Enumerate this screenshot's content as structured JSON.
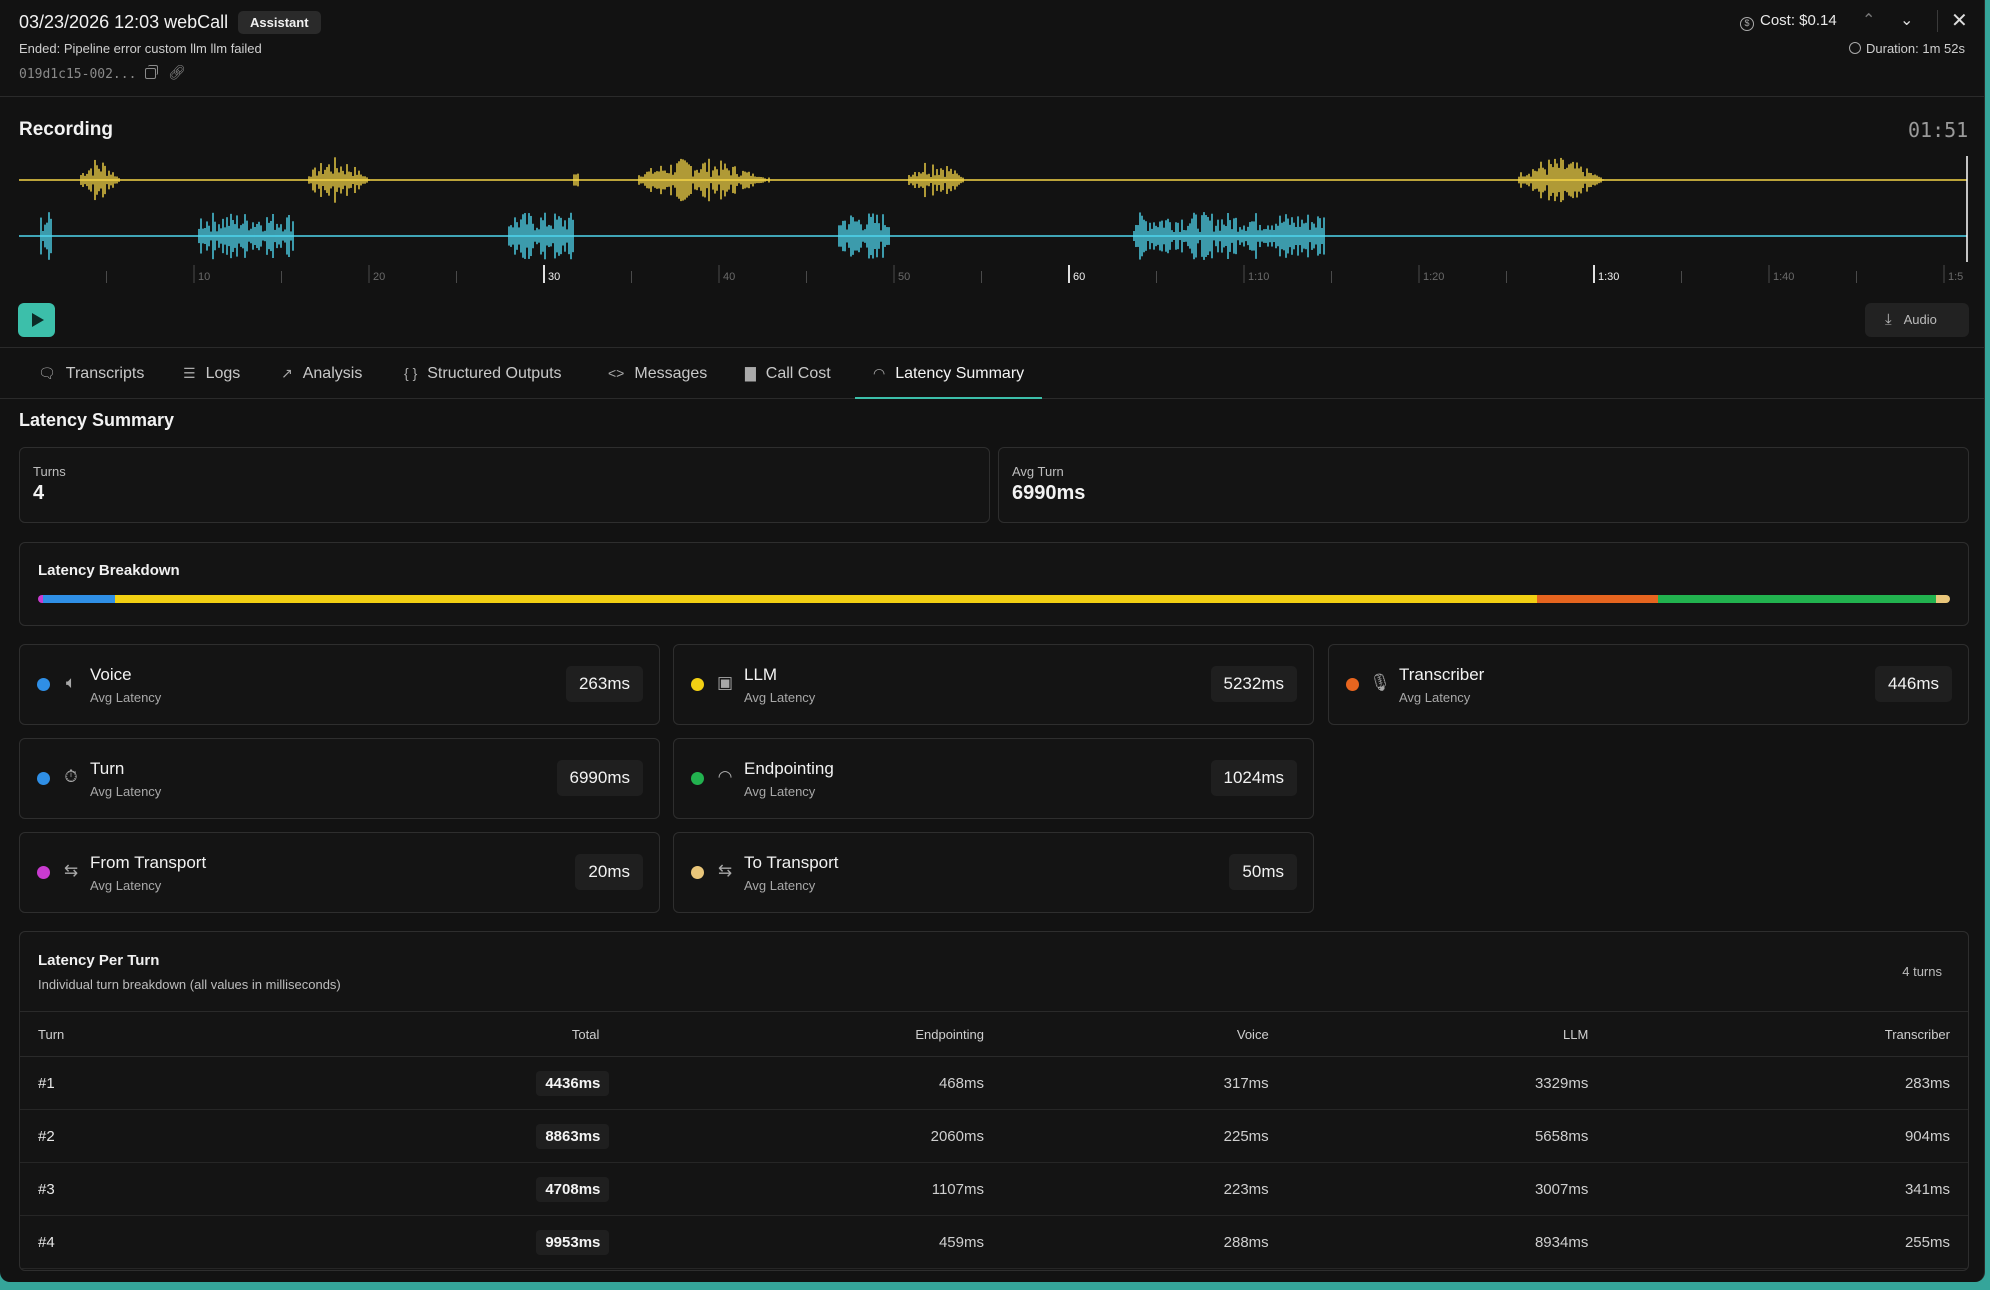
{
  "header": {
    "title": "03/23/2026 12:03 webCall",
    "badge": "Assistant",
    "ended": "Ended: Pipeline error custom llm llm failed",
    "call_id": "019d1c15-002...",
    "cost": "Cost: $0.14",
    "duration": "Duration: 1m 52s"
  },
  "recording": {
    "title": "Recording",
    "time": "01:51",
    "ticks": [
      "10",
      "20",
      "30",
      "40",
      "50",
      "60",
      "1:10",
      "1:20",
      "1:30",
      "1:40",
      "1:5"
    ],
    "audio_label": "Audio",
    "colors": {
      "assistant": "#f5d547",
      "user": "#4fd6ee"
    }
  },
  "tabs": [
    {
      "label": "Transcripts",
      "icon": "chat-icon"
    },
    {
      "label": "Logs",
      "icon": "list-icon"
    },
    {
      "label": "Analysis",
      "icon": "chart-line-icon"
    },
    {
      "label": "Structured Outputs",
      "icon": "braces-icon"
    },
    {
      "label": "Messages",
      "icon": "code-icon"
    },
    {
      "label": "Call Cost",
      "icon": "bar-chart-icon"
    },
    {
      "label": "Latency Summary",
      "icon": "gauge-icon",
      "active": true
    }
  ],
  "summary": {
    "title": "Latency Summary",
    "turns_label": "Turns",
    "turns_value": "4",
    "avg_turn_label": "Avg Turn",
    "avg_turn_value": "6990ms"
  },
  "breakdown": {
    "title": "Latency Breakdown",
    "segments": [
      {
        "color": "#c93bd0",
        "value": 20
      },
      {
        "color": "#2f8fe6",
        "value": 263
      },
      {
        "color": "#f2d013",
        "value": 5232
      },
      {
        "color": "#e7651f",
        "value": 446
      },
      {
        "color": "#22b24f",
        "value": 1024
      },
      {
        "color": "#e9c67a",
        "value": 50
      }
    ]
  },
  "metrics": [
    {
      "name": "Voice",
      "sub": "Avg Latency",
      "value": "263ms",
      "color": "#2f8fe6",
      "icon": "speaker-icon"
    },
    {
      "name": "LLM",
      "sub": "Avg Latency",
      "value": "5232ms",
      "color": "#f2d013",
      "icon": "bot-icon"
    },
    {
      "name": "Transcriber",
      "sub": "Avg Latency",
      "value": "446ms",
      "color": "#e7651f",
      "icon": "mic-icon"
    },
    {
      "name": "Turn",
      "sub": "Avg Latency",
      "value": "6990ms",
      "color": "#2f8fe6",
      "icon": "timer-icon"
    },
    {
      "name": "Endpointing",
      "sub": "Avg Latency",
      "value": "1024ms",
      "color": "#22b24f",
      "icon": "gauge-icon"
    },
    {
      "name": "From Transport",
      "sub": "Avg Latency",
      "value": "20ms",
      "color": "#c93bd0",
      "icon": "arrows-icon"
    },
    {
      "name": "To Transport",
      "sub": "Avg Latency",
      "value": "50ms",
      "color": "#e9c67a",
      "icon": "arrows-icon"
    }
  ],
  "per_turn": {
    "title": "Latency Per Turn",
    "subtitle": "Individual turn breakdown (all values in milliseconds)",
    "count": "4 turns",
    "columns": [
      "Turn",
      "Total",
      "Endpointing",
      "Voice",
      "LLM",
      "Transcriber"
    ],
    "rows": [
      [
        "#1",
        "4436ms",
        "468ms",
        "317ms",
        "3329ms",
        "283ms"
      ],
      [
        "#2",
        "8863ms",
        "2060ms",
        "225ms",
        "5658ms",
        "904ms"
      ],
      [
        "#3",
        "4708ms",
        "1107ms",
        "223ms",
        "3007ms",
        "341ms"
      ],
      [
        "#4",
        "9953ms",
        "459ms",
        "288ms",
        "8934ms",
        "255ms"
      ]
    ]
  }
}
